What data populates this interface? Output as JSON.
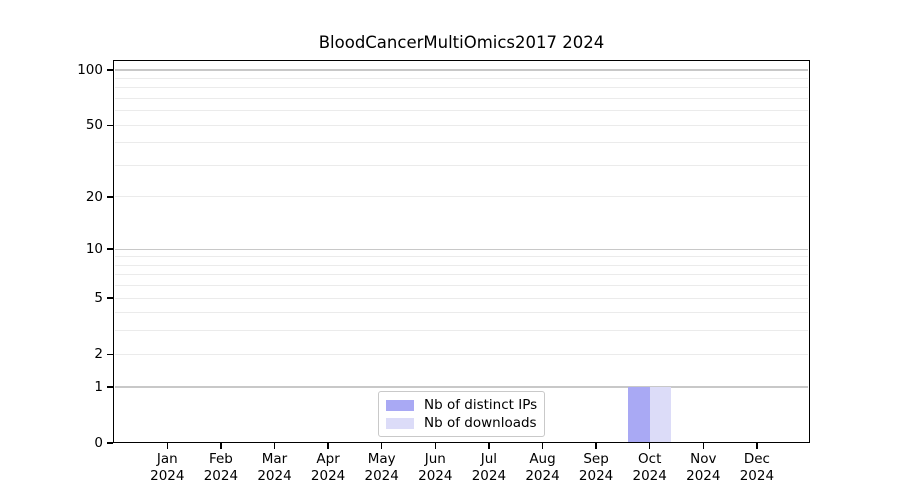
{
  "chart_data": {
    "type": "bar",
    "title": "BloodCancerMultiOmics2017 2024",
    "x_tick_year": "2024",
    "categories": [
      "Jan",
      "Feb",
      "Mar",
      "Apr",
      "May",
      "Jun",
      "Jul",
      "Aug",
      "Sep",
      "Oct",
      "Nov",
      "Dec"
    ],
    "series": [
      {
        "name": "Nb of distinct IPs",
        "color": "#a9a9f4",
        "values": [
          0,
          0,
          0,
          0,
          0,
          0,
          0,
          0,
          0,
          1,
          0,
          0
        ]
      },
      {
        "name": "Nb of downloads",
        "color": "#dcdcf8",
        "values": [
          0,
          0,
          0,
          0,
          0,
          0,
          0,
          0,
          0,
          1,
          0,
          0
        ]
      }
    ],
    "xlabel": "",
    "ylabel": "",
    "yscale": "log1p",
    "ylim": [
      0,
      113
    ],
    "ytick_values": [
      0,
      1,
      2,
      5,
      10,
      20,
      50,
      100
    ],
    "decade_gridlines": [
      1,
      10,
      100
    ],
    "minor_gridlines": [
      2,
      3,
      4,
      5,
      6,
      7,
      8,
      9,
      20,
      30,
      40,
      50,
      60,
      70,
      80,
      90
    ],
    "grid": true,
    "legend_position": "bottom-center-inside"
  },
  "style": {
    "bar_ips_color": "#a9a9f4",
    "bar_downloads_color": "#dcdcf8",
    "decade_grid_color": "#c8c8c8",
    "minor_grid_color": "#ebebeb",
    "axis_color": "#000000",
    "text_color": "#000000",
    "legend_border_color": "#c9c9c9",
    "background_color": "#ffffff"
  }
}
